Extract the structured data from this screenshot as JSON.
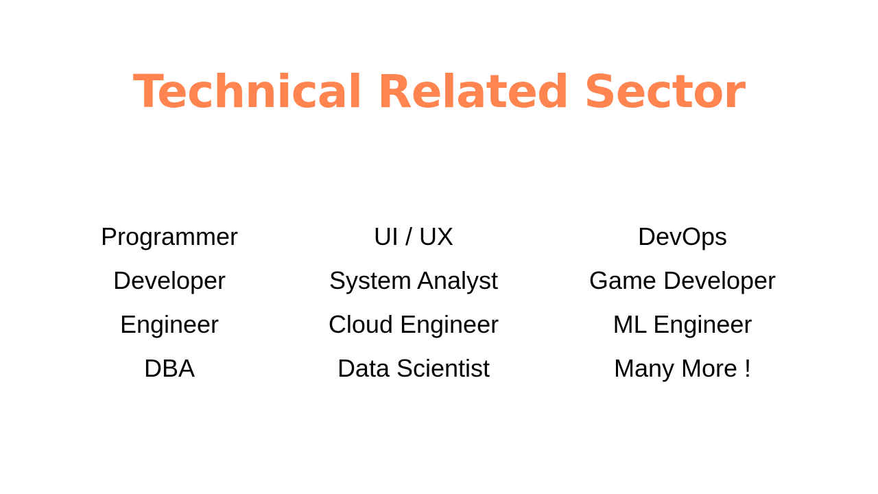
{
  "title": "Technical Related Sector",
  "accent_color": "#ff8450",
  "columns": [
    {
      "items": [
        "Programmer",
        "Developer",
        "Engineer",
        "DBA"
      ]
    },
    {
      "items": [
        "UI / UX",
        "System Analyst",
        "Cloud Engineer",
        "Data Scientist"
      ]
    },
    {
      "items": [
        "DevOps",
        "Game Developer",
        "ML Engineer",
        "Many More !"
      ]
    }
  ]
}
